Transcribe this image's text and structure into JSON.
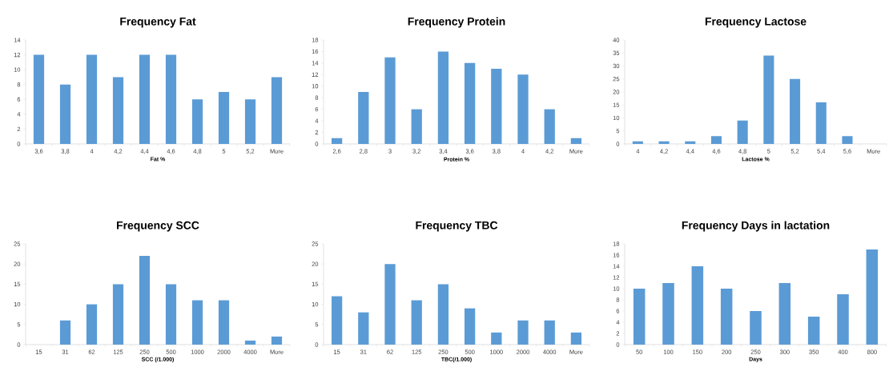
{
  "chart_data": [
    {
      "type": "bar",
      "title": "Frequency Fat",
      "xlabel": "Fat %",
      "categories": [
        "3,6",
        "3,8",
        "4",
        "4,2",
        "4,4",
        "4,6",
        "4,8",
        "5",
        "5,2",
        "More"
      ],
      "values": [
        12,
        8,
        12,
        9,
        12,
        12,
        6,
        7,
        6,
        9
      ],
      "color": "#5b9bd5",
      "ylim": [
        0,
        14
      ],
      "yticks": [
        0,
        2,
        4,
        6,
        8,
        10,
        12,
        14
      ]
    },
    {
      "type": "bar",
      "title": "Frequency Protein",
      "xlabel": "Protein %",
      "categories": [
        "2,6",
        "2,8",
        "3",
        "3,2",
        "3,4",
        "3,6",
        "3,8",
        "4",
        "4,2",
        "More"
      ],
      "values": [
        1,
        9,
        15,
        6,
        16,
        14,
        13,
        12,
        6,
        1
      ],
      "color": "#5b9bd5",
      "ylim": [
        0,
        18
      ],
      "yticks": [
        0,
        2,
        4,
        6,
        8,
        10,
        12,
        14,
        16,
        18
      ]
    },
    {
      "type": "bar",
      "title": "Frequency Lactose",
      "xlabel": "Lactose %",
      "categories": [
        "4",
        "4,2",
        "4,4",
        "4,6",
        "4,8",
        "5",
        "5,2",
        "5,4",
        "5,6",
        "More"
      ],
      "values": [
        1,
        1,
        1,
        3,
        9,
        34,
        25,
        16,
        3,
        0
      ],
      "color": "#5b9bd5",
      "ylim": [
        0,
        40
      ],
      "yticks": [
        0,
        5,
        10,
        15,
        20,
        25,
        30,
        35,
        40
      ]
    },
    {
      "type": "bar",
      "title": "Frequency SCC",
      "xlabel": "SCC (/1.000)",
      "categories": [
        "15",
        "31",
        "62",
        "125",
        "250",
        "500",
        "1000",
        "2000",
        "4000",
        "More"
      ],
      "values": [
        0,
        6,
        10,
        15,
        22,
        15,
        11,
        11,
        1,
        2
      ],
      "color": "#5b9bd5",
      "ylim": [
        0,
        25
      ],
      "yticks": [
        0,
        5,
        10,
        15,
        20,
        25
      ]
    },
    {
      "type": "bar",
      "title": "Frequency TBC",
      "xlabel": "TBC(/1.000)",
      "categories": [
        "15",
        "31",
        "62",
        "125",
        "250",
        "500",
        "1000",
        "2000",
        "4000",
        "More"
      ],
      "values": [
        12,
        8,
        20,
        11,
        15,
        9,
        3,
        6,
        6,
        3
      ],
      "color": "#5b9bd5",
      "ylim": [
        0,
        25
      ],
      "yticks": [
        0,
        5,
        10,
        15,
        20,
        25
      ]
    },
    {
      "type": "bar",
      "title": "Frequency Days in lactation",
      "xlabel": "Days",
      "categories": [
        "50",
        "100",
        "150",
        "200",
        "250",
        "300",
        "350",
        "400",
        "800"
      ],
      "values": [
        10,
        11,
        14,
        10,
        6,
        11,
        5,
        9,
        17
      ],
      "color": "#5b9bd5",
      "ylim": [
        0,
        18
      ],
      "yticks": [
        0,
        2,
        4,
        6,
        8,
        10,
        12,
        14,
        16,
        18
      ]
    }
  ]
}
